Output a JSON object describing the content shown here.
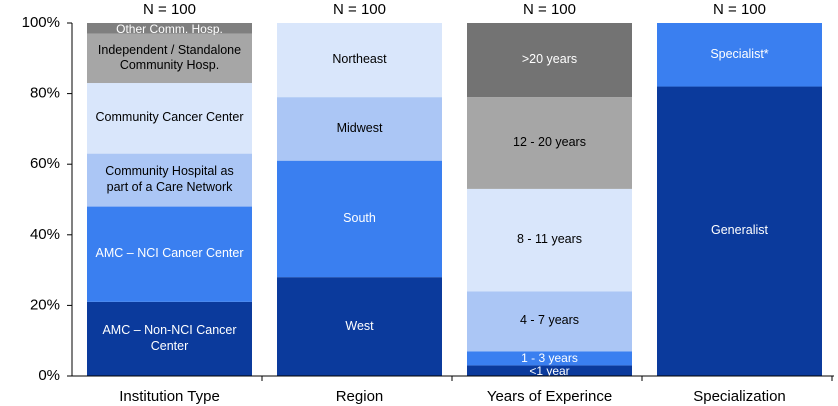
{
  "chart_data": {
    "type": "stacked_bar",
    "ylim": [
      0,
      100
    ],
    "yticks": [
      {
        "value": 0,
        "label": "0%"
      },
      {
        "value": 20,
        "label": "20%"
      },
      {
        "value": 40,
        "label": "40%"
      },
      {
        "value": 60,
        "label": "60%"
      },
      {
        "value": 80,
        "label": "80%"
      },
      {
        "value": 100,
        "label": "100%"
      }
    ],
    "bars": [
      {
        "category": "Institution Type",
        "n_label": "N = 100",
        "segments": [
          {
            "name": "AMC – Non-NCI Cancer Center",
            "value": 21,
            "color": "#0b3a9c"
          },
          {
            "name": "AMC – NCI Cancer Center",
            "value": 27,
            "color": "#3a7ff0"
          },
          {
            "name": "Community Hospital as part of a Care Network",
            "value": 15,
            "color": "#abc6f5"
          },
          {
            "name": "Community Cancer Center",
            "value": 20,
            "color": "#d9e6fb"
          },
          {
            "name": "Independent / Standalone Community Hosp.",
            "value": 14,
            "color": "#a6a6a6"
          },
          {
            "name": "Other Comm. Hosp.",
            "value": 3,
            "color": "#7f7f7f"
          }
        ]
      },
      {
        "category": "Region",
        "n_label": "N = 100",
        "segments": [
          {
            "name": "West",
            "value": 28,
            "color": "#0b3a9c"
          },
          {
            "name": "South",
            "value": 33,
            "color": "#3a7ff0"
          },
          {
            "name": "Midwest",
            "value": 18,
            "color": "#abc6f5"
          },
          {
            "name": "Northeast",
            "value": 21,
            "color": "#d9e6fb"
          }
        ]
      },
      {
        "category": "Years of Experince",
        "n_label": "N = 100",
        "segments": [
          {
            "name": "<1 year",
            "value": 3,
            "color": "#0b3a9c"
          },
          {
            "name": "1 - 3 years",
            "value": 4,
            "color": "#3a7ff0"
          },
          {
            "name": "4 - 7 years",
            "value": 17,
            "color": "#abc6f5"
          },
          {
            "name": "8 - 11 years",
            "value": 29,
            "color": "#d9e6fb"
          },
          {
            "name": "12 - 20 years",
            "value": 26,
            "color": "#a6a6a6"
          },
          {
            "name": ">20 years",
            "value": 21,
            "color": "#737373"
          }
        ]
      },
      {
        "category": "Specialization",
        "n_label": "N = 100",
        "segments": [
          {
            "name": "Generalist",
            "value": 82,
            "color": "#0b3a9c"
          },
          {
            "name": "Specialist*",
            "value": 18,
            "color": "#3a7ff0"
          }
        ]
      }
    ]
  }
}
